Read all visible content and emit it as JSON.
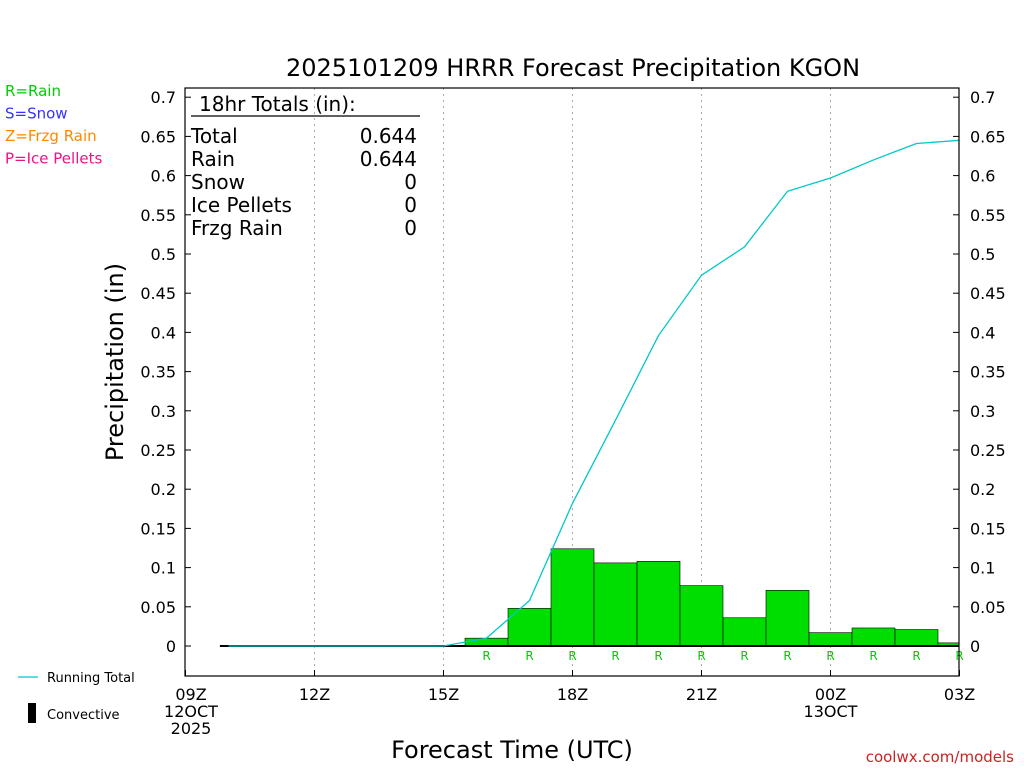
{
  "title": "2025101209 HRRR Forecast Precipitation KGON",
  "ylabel": "Precipitation (in)",
  "xlabel": "Forecast Time (UTC)",
  "credit": "coolwx.com/models",
  "legend_types": [
    {
      "text": "R=Rain",
      "color": "#00cc00"
    },
    {
      "text": "S=Snow",
      "color": "#3333ff"
    },
    {
      "text": "Z=Frzg Rain",
      "color": "#ff8800"
    },
    {
      "text": "P=Ice Pellets",
      "color": "#ee1188"
    }
  ],
  "legend_lines": {
    "running_total": {
      "text": "Running Total",
      "color": "#00c8c8"
    },
    "convective": {
      "text": "Convective",
      "color": "#000000"
    }
  },
  "totals": {
    "header": "18hr Totals (in):",
    "rows": [
      {
        "label": "Total",
        "value": "0.644"
      },
      {
        "label": "Rain",
        "value": "0.644"
      },
      {
        "label": "Snow",
        "value": "0"
      },
      {
        "label": "Ice Pellets",
        "value": "0"
      },
      {
        "label": "Frzg Rain",
        "value": "0"
      }
    ]
  },
  "chart_data": {
    "type": "bar",
    "x_ticks": [
      {
        "hour": 0,
        "lines": [
          "09Z",
          "12OCT",
          "2025"
        ]
      },
      {
        "hour": 3,
        "lines": [
          "12Z"
        ]
      },
      {
        "hour": 6,
        "lines": [
          "15Z"
        ]
      },
      {
        "hour": 9,
        "lines": [
          "18Z"
        ]
      },
      {
        "hour": 12,
        "lines": [
          "21Z"
        ]
      },
      {
        "hour": 15,
        "lines": [
          "00Z",
          "13OCT"
        ]
      },
      {
        "hour": 18,
        "lines": [
          "03Z"
        ]
      }
    ],
    "y_ticks": [
      "0",
      "0.05",
      "0.1",
      "0.15",
      "0.2",
      "0.25",
      "0.3",
      "0.35",
      "0.4",
      "0.45",
      "0.5",
      "0.55",
      "0.6",
      "0.65",
      "0.7"
    ],
    "ylim": [
      -0.04,
      0.71
    ],
    "xlim": [
      0,
      18
    ],
    "grid": "vertical dotted at 3-hour ticks",
    "series": [
      {
        "name": "Rain",
        "type": "bar",
        "color": "#00dd00",
        "bars": [
          {
            "start": 6.5,
            "end": 7.5,
            "value": 0.01
          },
          {
            "start": 7.5,
            "end": 8.5,
            "value": 0.048
          },
          {
            "start": 8.5,
            "end": 9.5,
            "value": 0.124
          },
          {
            "start": 9.5,
            "end": 10.5,
            "value": 0.106
          },
          {
            "start": 10.5,
            "end": 11.5,
            "value": 0.108
          },
          {
            "start": 11.5,
            "end": 12.5,
            "value": 0.077
          },
          {
            "start": 12.5,
            "end": 13.5,
            "value": 0.036
          },
          {
            "start": 13.5,
            "end": 14.5,
            "value": 0.071
          },
          {
            "start": 14.5,
            "end": 15.5,
            "value": 0.017
          },
          {
            "start": 15.5,
            "end": 16.5,
            "value": 0.023
          },
          {
            "start": 16.5,
            "end": 17.5,
            "value": 0.021
          },
          {
            "start": 17.5,
            "end": 18,
            "value": 0.004
          }
        ]
      },
      {
        "name": "Running Total",
        "type": "line",
        "color": "#00c8c8",
        "points": [
          [
            1,
            0
          ],
          [
            2,
            0
          ],
          [
            3,
            0
          ],
          [
            4,
            0
          ],
          [
            5,
            0
          ],
          [
            6,
            0
          ],
          [
            7,
            0.01
          ],
          [
            8,
            0.058
          ],
          [
            9,
            0.182
          ],
          [
            10,
            0.288
          ],
          [
            11,
            0.396
          ],
          [
            12,
            0.473
          ],
          [
            13,
            0.509
          ],
          [
            14,
            0.58
          ],
          [
            15,
            0.597
          ],
          [
            16,
            0.62
          ],
          [
            17,
            0.641
          ],
          [
            18,
            0.645
          ]
        ]
      },
      {
        "name": "Convective",
        "type": "line",
        "color": "#000000",
        "points": [
          [
            0.8,
            0
          ],
          [
            18,
            0
          ]
        ]
      }
    ],
    "precip_type_labels": {
      "hours": [
        7,
        8,
        9,
        10,
        11,
        12,
        13,
        14,
        15,
        16,
        17,
        18
      ],
      "text": "R",
      "color": "#00cc00"
    }
  }
}
